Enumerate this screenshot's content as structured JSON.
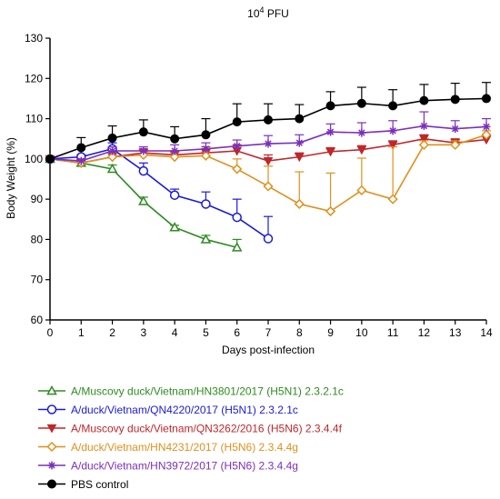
{
  "chart_data": {
    "type": "line",
    "title": {
      "base": "10",
      "sup": "4",
      "unit": " PFU"
    },
    "xlabel": "Days post-infection",
    "ylabel": "Body Weight (%)",
    "xlim": [
      0,
      14
    ],
    "ylim": [
      60,
      130
    ],
    "xticks": [
      0,
      1,
      2,
      3,
      4,
      5,
      6,
      7,
      8,
      9,
      10,
      11,
      12,
      13,
      14
    ],
    "yticks": [
      60,
      70,
      80,
      90,
      100,
      110,
      120,
      130
    ],
    "grid": false,
    "legend_position": "bottom",
    "series": [
      {
        "name": "A/Muscovy duck/Vietnam/HN3801/2017 (H5N1) 2.3.2.1c",
        "color": "#2e8b22",
        "marker": "triangle-up-open",
        "x": [
          0,
          1,
          2,
          3,
          4,
          5,
          6
        ],
        "y": [
          100,
          99,
          97.5,
          89.5,
          83,
          80,
          78
        ],
        "err": [
          0,
          0,
          1,
          1,
          0.5,
          1,
          2
        ]
      },
      {
        "name": "A/duck/Vietnam/QN4220/2017 (H5N1) 2.3.2.1c",
        "color": "#1a1adb",
        "marker": "circle-open",
        "x": [
          0,
          1,
          2,
          3,
          4,
          5,
          6,
          7
        ],
        "y": [
          100,
          100.5,
          102.5,
          97,
          91,
          88.8,
          85.5,
          80.2
        ],
        "err": [
          0,
          0.5,
          1.5,
          2,
          1.5,
          3,
          4.5,
          5.5
        ]
      },
      {
        "name": "A/Muscovy duck/Vietnam/QN3262/2016 (H5N6) 2.3.4.4f",
        "color": "#c0262a",
        "marker": "triangle-down-filled",
        "x": [
          0,
          1,
          2,
          3,
          4,
          5,
          6,
          7,
          8,
          9,
          10,
          11,
          12,
          13,
          14
        ],
        "y": [
          100,
          99,
          100.5,
          101.5,
          101,
          101.5,
          102,
          99.5,
          100.5,
          101.8,
          102.3,
          103.5,
          105,
          104,
          104.8
        ],
        "err": [
          0,
          0.5,
          1,
          1,
          1,
          1.5,
          1.5,
          1.5,
          1,
          1,
          1,
          1,
          1,
          1,
          1
        ]
      },
      {
        "name": "A/duck/Vietnam/HN4231/2017 (H5N6) 2.3.4.4g",
        "color": "#e0901c",
        "marker": "diamond-open",
        "x": [
          0,
          1,
          2,
          3,
          4,
          5,
          6,
          7,
          8,
          9,
          10,
          11,
          12,
          13,
          14
        ],
        "y": [
          100,
          99,
          100.5,
          101,
          100.5,
          100.8,
          97.5,
          93.2,
          88.8,
          87,
          92.2,
          90,
          103.5,
          103.5,
          106
        ],
        "err": [
          0,
          0.5,
          1,
          1,
          1,
          1,
          2.5,
          5,
          8,
          9.5,
          8,
          13,
          1,
          1,
          1
        ]
      },
      {
        "name": "A/duck/Vietnam/HN3972/2017 (H5N6) 2.3.4.4g",
        "color": "#7b2fbe",
        "marker": "star",
        "x": [
          0,
          1,
          2,
          3,
          4,
          5,
          6,
          7,
          8,
          9,
          10,
          11,
          12,
          13,
          14
        ],
        "y": [
          100,
          99.5,
          102,
          102,
          102,
          102.5,
          103.2,
          103.8,
          104,
          106.7,
          106.5,
          107,
          108.2,
          107.5,
          108
        ],
        "err": [
          0,
          0.5,
          1,
          1,
          1.5,
          1.5,
          1.5,
          2,
          2,
          2,
          2.5,
          2.5,
          3.5,
          2,
          2
        ]
      },
      {
        "name": "PBS control",
        "color": "#000000",
        "marker": "circle-filled",
        "x": [
          0,
          1,
          2,
          3,
          4,
          5,
          6,
          7,
          8,
          9,
          10,
          11,
          12,
          13,
          14
        ],
        "y": [
          100,
          102.8,
          105.2,
          106.7,
          105,
          106,
          109.2,
          109.7,
          110,
          113.2,
          113.8,
          113.2,
          114.5,
          114.8,
          115
        ],
        "err": [
          0,
          2.5,
          3,
          3,
          3,
          4,
          4.5,
          4,
          3.5,
          3.5,
          4,
          4,
          4,
          4,
          4
        ]
      }
    ]
  }
}
